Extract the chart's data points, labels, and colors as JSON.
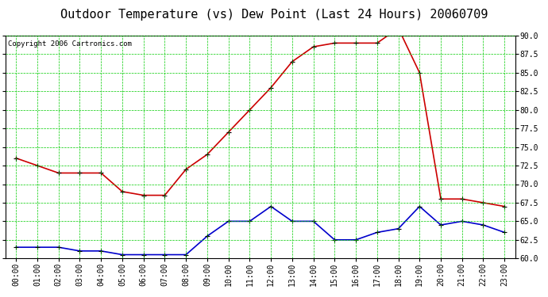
{
  "title": "Outdoor Temperature (vs) Dew Point (Last 24 Hours) 20060709",
  "copyright": "Copyright 2006 Cartronics.com",
  "hours": [
    "00:00",
    "01:00",
    "02:00",
    "03:00",
    "04:00",
    "05:00",
    "06:00",
    "07:00",
    "08:00",
    "09:00",
    "10:00",
    "11:00",
    "12:00",
    "13:00",
    "14:00",
    "15:00",
    "16:00",
    "17:00",
    "18:00",
    "19:00",
    "20:00",
    "21:00",
    "22:00",
    "23:00"
  ],
  "temp": [
    73.5,
    72.5,
    71.5,
    71.5,
    71.5,
    69.0,
    68.5,
    68.5,
    72.0,
    74.0,
    77.0,
    80.0,
    83.0,
    86.5,
    88.5,
    89.0,
    89.0,
    89.0,
    91.0,
    85.0,
    68.0,
    68.0,
    67.5,
    67.0
  ],
  "dew": [
    61.5,
    61.5,
    61.5,
    61.0,
    61.0,
    60.5,
    60.5,
    60.5,
    60.5,
    63.0,
    65.0,
    65.0,
    67.0,
    65.0,
    65.0,
    62.5,
    62.5,
    63.5,
    64.0,
    67.0,
    64.5,
    65.0,
    64.5,
    63.5
  ],
  "ylim": [
    60.0,
    90.0
  ],
  "yticks": [
    60.0,
    62.5,
    65.0,
    67.5,
    70.0,
    72.5,
    75.0,
    77.5,
    80.0,
    82.5,
    85.0,
    87.5,
    90.0
  ],
  "temp_color": "#cc0000",
  "dew_color": "#0000cc",
  "grid_color": "#00cc00",
  "bg_color": "#ffffff",
  "plot_bg_color": "#ffffff",
  "marker": "+",
  "marker_color": "#000000",
  "title_fontsize": 11,
  "tick_fontsize": 7,
  "copyright_fontsize": 6.5
}
